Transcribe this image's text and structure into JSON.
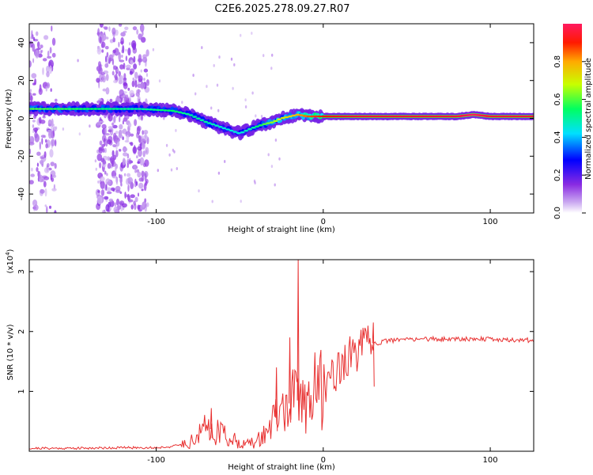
{
  "title": "C2E6.2025.278.09.27.R07",
  "chart_data": [
    {
      "type": "heatmap",
      "xlabel": "Height of straight line (km)",
      "ylabel": "Frequency (Hz)",
      "xlim": [
        -176,
        126
      ],
      "ylim": [
        -50,
        50
      ],
      "xticks": [
        -100,
        0,
        100
      ],
      "yticks": [
        40,
        20,
        0,
        -20,
        -40
      ],
      "colorbar": {
        "label": "Normalized spectral amplitude",
        "range": [
          0,
          1
        ],
        "ticks": [
          "0.0",
          "0.2",
          "0.4",
          "0.6",
          "0.8"
        ],
        "tick_values": [
          0.0,
          0.2,
          0.4,
          0.6,
          0.8
        ]
      },
      "ridge": {
        "x": [
          -176,
          -140,
          -110,
          -90,
          -80,
          -70,
          -60,
          -50,
          -42,
          -35,
          -30,
          -25,
          -20,
          -15,
          -10,
          0,
          20,
          40,
          60,
          80,
          90,
          100,
          126
        ],
        "freq": [
          5,
          5,
          5,
          4,
          2,
          -2,
          -5,
          -8,
          -5,
          -3,
          -2,
          0,
          1,
          2,
          1,
          1,
          1,
          1,
          1,
          1,
          2,
          1,
          1
        ],
        "amplitude": [
          0.6,
          0.55,
          0.5,
          0.55,
          0.5,
          0.5,
          0.45,
          0.45,
          0.5,
          0.6,
          0.65,
          0.7,
          0.75,
          0.8,
          0.85,
          0.9,
          0.95,
          0.95,
          0.95,
          0.95,
          1.0,
          0.95,
          0.95
        ]
      }
    },
    {
      "type": "line",
      "xlabel": "Height of straight line (km)",
      "ylabel": "SNR (10 * v/v)",
      "y_multiplier_label": "(x10",
      "y_multiplier_exp": "4",
      "y_multiplier_close": ")",
      "xlim": [
        -176,
        126
      ],
      "ylim": [
        0,
        3.2
      ],
      "xticks": [
        -100,
        0,
        100
      ],
      "yticks": [
        1,
        2,
        3
      ],
      "color": "#e83030",
      "series": [
        {
          "name": "SNR",
          "x": [
            -176,
            -150,
            -120,
            -100,
            -90,
            -80,
            -75,
            -70,
            -65,
            -60,
            -55,
            -50,
            -45,
            -40,
            -35,
            -30,
            -25,
            -20,
            -15,
            -10,
            -5,
            0,
            5,
            10,
            15,
            20,
            25,
            30,
            35,
            40,
            50,
            60,
            70,
            80,
            90,
            100,
            110,
            120,
            126
          ],
          "y": [
            0.05,
            0.05,
            0.06,
            0.06,
            0.08,
            0.15,
            0.25,
            0.4,
            0.35,
            0.3,
            0.2,
            0.15,
            0.12,
            0.15,
            0.3,
            0.5,
            0.65,
            0.8,
            0.85,
            0.9,
            1.0,
            1.1,
            1.3,
            1.4,
            1.55,
            1.65,
            1.75,
            1.8,
            1.82,
            1.85,
            1.87,
            1.88,
            1.87,
            1.88,
            1.88,
            1.87,
            1.86,
            1.86,
            1.85
          ]
        }
      ],
      "spikes": [
        {
          "x": -15,
          "y": 3.2
        },
        {
          "x": -20,
          "y": 1.9
        },
        {
          "x": -28,
          "y": 1.4
        },
        {
          "x": 30,
          "y": 2.15
        },
        {
          "x": -67,
          "y": 0.72
        }
      ]
    }
  ]
}
